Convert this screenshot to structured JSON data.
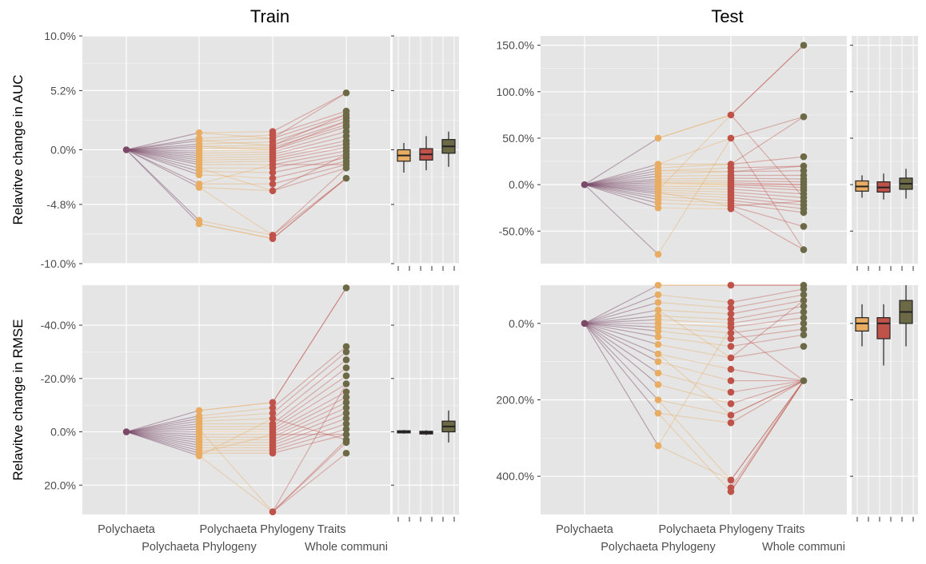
{
  "colors": {
    "panel_bg": "#e5e5e5",
    "grid": "#ffffff",
    "polychaeta": "#7a4a68",
    "phylogeny": "#e8ad63",
    "traits": "#bf5249",
    "whole": "#6c6a46",
    "box_outline": "#222222"
  },
  "chart_data": [
    {
      "type": "line",
      "panel": "Train / AUC",
      "title": "Train",
      "ylabel": "Relavitve change in AUC",
      "categories": [
        "Polychaeta",
        "Polychaeta Phylogeny",
        "Polychaeta Phylogeny Traits",
        "Whole communi"
      ],
      "ylim": [
        -10.0,
        10.0
      ],
      "y_ticks": [
        -10.0,
        -4.8,
        0.0,
        5.2,
        10.0
      ],
      "y_tick_labels": [
        "-10.0%",
        "-4.8%",
        "0.0%",
        "5.2%",
        "10.0%"
      ],
      "y_reversed": false,
      "points": {
        "Polychaeta Phylogeny": [
          1.5,
          1.0,
          0.8,
          0.5,
          0.3,
          0.1,
          -0.1,
          -0.3,
          -0.5,
          -0.7,
          -0.9,
          -1.1,
          -1.3,
          -1.6,
          -1.9,
          -2.2,
          -3.0,
          -3.3,
          -6.2,
          -6.5
        ],
        "Polychaeta Phylogeny Traits": [
          1.6,
          1.3,
          1.0,
          0.7,
          0.4,
          0.2,
          0.0,
          -0.2,
          -0.4,
          -0.6,
          -0.8,
          -1.0,
          -1.3,
          -1.6,
          -2.0,
          -2.5,
          -3.0,
          -3.6,
          -7.5,
          -7.8
        ],
        "Whole communi": [
          5.0,
          3.4,
          3.1,
          2.8,
          2.5,
          2.2,
          2.0,
          1.6,
          1.2,
          0.8,
          0.5,
          0.2,
          -0.1,
          -0.4,
          -0.7,
          -1.0,
          -1.3,
          -1.6,
          -2.5
        ]
      },
      "links": [
        [
          0,
          2
        ],
        [
          2,
          4
        ],
        [
          4,
          6
        ],
        [
          13,
          17
        ],
        [
          16,
          12
        ],
        [
          17,
          18
        ],
        [
          19,
          19
        ]
      ],
      "boxes": [
        {
          "name": "Polychaeta Phylogeny",
          "q1": -1.0,
          "median": -0.5,
          "q3": 0.0,
          "min": -2.0,
          "max": 0.6
        },
        {
          "name": "Polychaeta Phylogeny Traits",
          "q1": -0.9,
          "median": -0.4,
          "q3": 0.1,
          "min": -1.8,
          "max": 1.2
        },
        {
          "name": "Whole communi",
          "q1": -0.3,
          "median": 0.3,
          "q3": 0.9,
          "min": -1.5,
          "max": 1.6
        }
      ]
    },
    {
      "type": "line",
      "panel": "Test / AUC",
      "title": "Test",
      "ylabel": "",
      "categories": [
        "Polychaeta",
        "Polychaeta Phylogeny",
        "Polychaeta Phylogeny Traits",
        "Whole communi"
      ],
      "ylim": [
        -85,
        160
      ],
      "y_ticks": [
        -50,
        0,
        50,
        100,
        150
      ],
      "y_tick_labels": [
        "-50.0%",
        "0.0%",
        "50.0%",
        "100.0%",
        "150.0%"
      ],
      "y_reversed": false,
      "points": {
        "Polychaeta Phylogeny": [
          50,
          22,
          18,
          15,
          12,
          9,
          6,
          4,
          2,
          0,
          -2,
          -4,
          -6,
          -8,
          -10,
          -13,
          -16,
          -20,
          -25,
          -75
        ],
        "Polychaeta Phylogeny Traits": [
          75,
          50,
          22,
          18,
          14,
          10,
          7,
          4,
          2,
          0,
          -2,
          -5,
          -8,
          -11,
          -14,
          -17,
          -20,
          -23,
          -26
        ],
        "Whole communi": [
          150,
          73,
          30,
          20,
          15,
          10,
          6,
          3,
          0,
          -3,
          -6,
          -10,
          -14,
          -18,
          -22,
          -26,
          -30,
          -45,
          -70
        ]
      },
      "links": [
        [
          0,
          0
        ],
        [
          1,
          2
        ],
        [
          3,
          4
        ],
        [
          8,
          9
        ],
        [
          12,
          0
        ],
        [
          19,
          1
        ],
        [
          13,
          17
        ]
      ],
      "boxes": [
        {
          "name": "Polychaeta Phylogeny",
          "q1": -7,
          "median": -2,
          "q3": 4,
          "min": -14,
          "max": 10
        },
        {
          "name": "Polychaeta Phylogeny Traits",
          "q1": -8,
          "median": -3,
          "q3": 3,
          "min": -16,
          "max": 12
        },
        {
          "name": "Whole communi",
          "q1": -5,
          "median": 1,
          "q3": 7,
          "min": -15,
          "max": 17
        }
      ]
    },
    {
      "type": "line",
      "panel": "Train / RMSE",
      "title": "",
      "ylabel": "Relavitve change in RMSE",
      "categories": [
        "Polychaeta",
        "Polychaeta Phylogeny",
        "Polychaeta Phylogeny Traits",
        "Whole communi"
      ],
      "ylim": [
        -55,
        31
      ],
      "y_ticks": [
        -40,
        -20,
        0,
        20
      ],
      "y_tick_labels": [
        "-40.0%",
        "-20.0%",
        "0.0%",
        "20.0%"
      ],
      "y_reversed": true,
      "points": {
        "Polychaeta Phylogeny": [
          -8,
          -6,
          -5,
          -4,
          -3,
          -2,
          -1,
          0,
          1,
          2,
          3,
          4,
          5,
          6,
          7,
          8,
          9
        ],
        "Polychaeta Phylogeny Traits": [
          -11,
          -9,
          -7,
          -5,
          -3,
          -2,
          -1,
          0,
          1,
          2,
          3,
          4,
          5,
          6,
          7,
          8,
          30
        ],
        "Whole communi": [
          -54,
          -32,
          -30,
          -27,
          -24,
          -21,
          -18,
          -15,
          -13,
          -11,
          -9,
          -7,
          -5,
          -3,
          -1,
          1,
          3,
          4,
          8
        ]
      },
      "links": [
        [
          0,
          0
        ],
        [
          6,
          16
        ],
        [
          16,
          3
        ],
        [
          15,
          8
        ]
      ],
      "boxes": [
        {
          "name": "Polychaeta Phylogeny",
          "q1": -0.4,
          "median": 0.0,
          "q3": 0.4,
          "min": -0.7,
          "max": 0.7
        },
        {
          "name": "Polychaeta Phylogeny Traits",
          "q1": -0.2,
          "median": 0.3,
          "q3": 0.8,
          "min": -0.6,
          "max": 1.2
        },
        {
          "name": "Whole communi",
          "q1": -4,
          "median": -2,
          "q3": 0,
          "min": -8,
          "max": 4
        }
      ]
    },
    {
      "type": "line",
      "panel": "Test / RMSE",
      "title": "",
      "ylabel": "",
      "categories": [
        "Polychaeta",
        "Polychaeta Phylogeny",
        "Polychaeta Phylogeny Traits",
        "Whole communi"
      ],
      "ylim": [
        -100,
        500
      ],
      "y_ticks": [
        0,
        200,
        400
      ],
      "y_tick_labels": [
        "0.0%",
        "200.0%",
        "400.0%"
      ],
      "y_reversed": true,
      "points": {
        "Polychaeta Phylogeny": [
          -100,
          -75,
          -55,
          -35,
          -20,
          -10,
          0,
          10,
          20,
          35,
          55,
          80,
          100,
          130,
          160,
          200,
          235,
          320
        ],
        "Polychaeta Phylogeny Traits": [
          -100,
          -55,
          -40,
          -25,
          -10,
          0,
          10,
          25,
          40,
          60,
          90,
          120,
          150,
          180,
          210,
          240,
          260,
          410,
          430,
          440
        ],
        "Whole communi": [
          -100,
          -90,
          -75,
          -60,
          -45,
          -30,
          -15,
          0,
          15,
          30,
          60,
          150
        ]
      },
      "links": [
        [
          0,
          0
        ],
        [
          17,
          6
        ],
        [
          15,
          17
        ],
        [
          16,
          19
        ],
        [
          11,
          15
        ],
        [
          3,
          10
        ]
      ],
      "boxes": [
        {
          "name": "Polychaeta Phylogeny",
          "q1": -15,
          "median": 0,
          "q3": 20,
          "min": -50,
          "max": 60
        },
        {
          "name": "Polychaeta Phylogeny Traits",
          "q1": -15,
          "median": 0,
          "q3": 40,
          "min": -50,
          "max": 110
        },
        {
          "name": "Whole communi",
          "q1": -60,
          "median": -30,
          "q3": 0,
          "min": -100,
          "max": 60
        }
      ]
    }
  ]
}
